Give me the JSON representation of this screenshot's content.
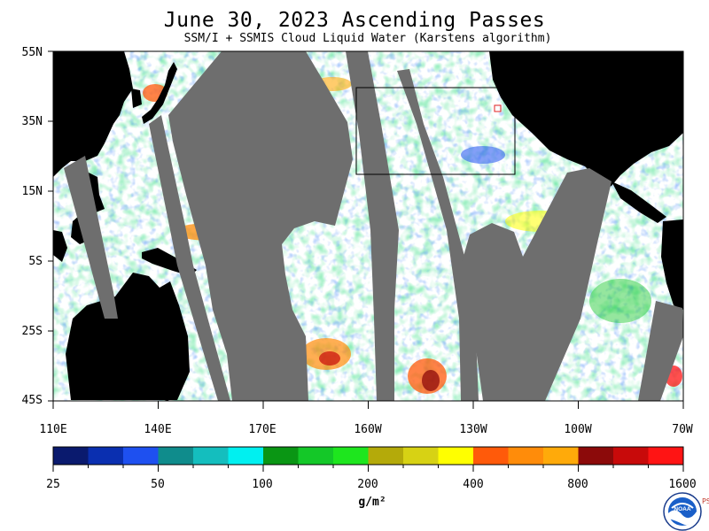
{
  "header": {
    "title": "June 30, 2023  Ascending Passes",
    "subtitle": "SSM/I + SSMIS Cloud Liquid Water (Karstens algorithm)"
  },
  "map": {
    "latitude_labels": [
      "55N",
      "35N",
      "15N",
      "5S",
      "25S",
      "45S"
    ],
    "longitude_labels": [
      "110E",
      "140E",
      "170E",
      "160W",
      "130W",
      "100W",
      "70W"
    ],
    "colors": {
      "land": "#000000",
      "no_data_swath_gap": "#6e6e6e",
      "clear": "#ffffff",
      "region_box": "#000000",
      "marker": "#e02020"
    }
  },
  "colorbar": {
    "colors": [
      "#0a1a6e",
      "#0a2fb0",
      "#1e50f0",
      "#0f8c8c",
      "#14bebe",
      "#00f0f0",
      "#0a9614",
      "#14c828",
      "#1ee61e",
      "#b4aa0a",
      "#d7d214",
      "#ffff00",
      "#ff5a0a",
      "#ff8c0a",
      "#ffaa0a",
      "#8c0a0a",
      "#c80a0a",
      "#ff1414"
    ],
    "tick_labels": [
      "25",
      "50",
      "100",
      "200",
      "400",
      "800",
      "1600"
    ],
    "units": "g/m²"
  },
  "logo": {
    "text": "NOAA",
    "side_text": "PSL"
  }
}
